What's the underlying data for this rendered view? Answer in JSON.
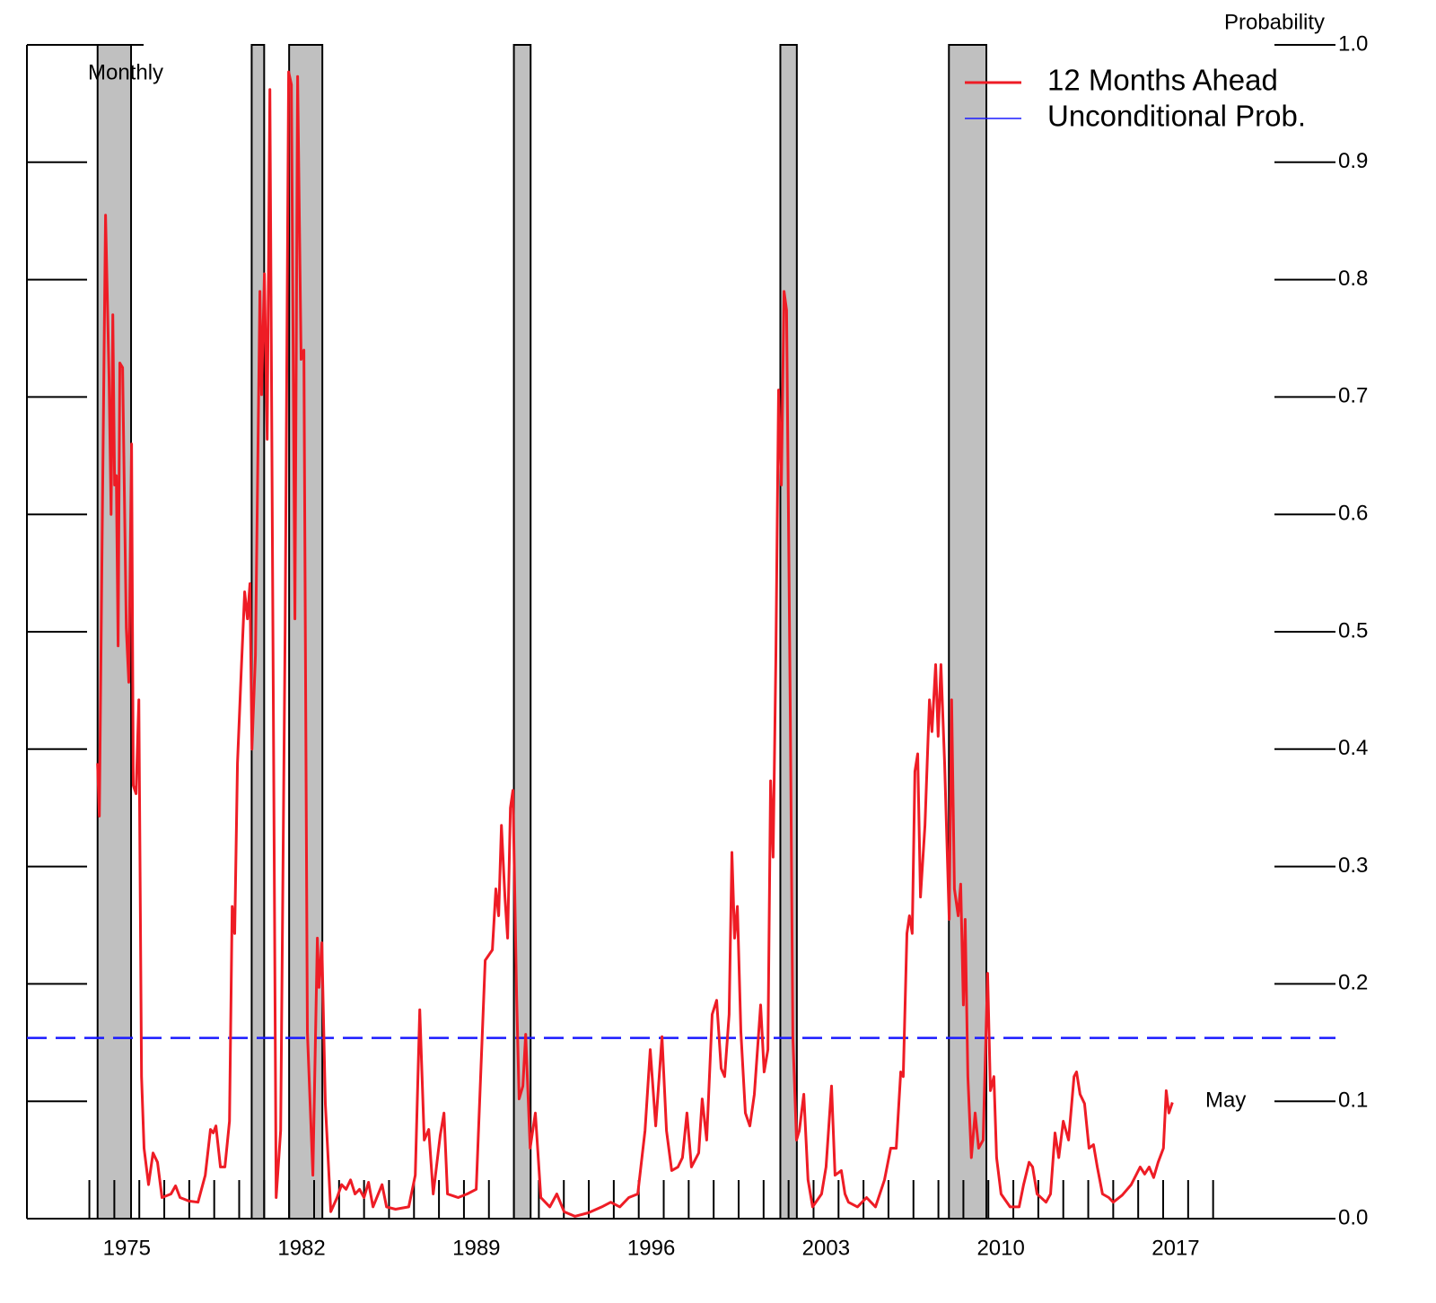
{
  "chart_data": {
    "type": "line",
    "y_axis_label": "Probability",
    "annotations": [
      "Monthly",
      "May"
    ],
    "legend": "top-right",
    "xlim": [
      1971,
      2023.4
    ],
    "ylim": [
      0,
      1
    ],
    "xticks": [
      1975,
      1982,
      1989,
      1996,
      2003,
      2010,
      2017
    ],
    "minor_xticks": [
      1973.5,
      1974.5,
      1975.5,
      1976.5,
      1977.5,
      1978.5,
      1979.5,
      1980.5,
      1981.5,
      1982.5,
      1983.5,
      1984.5,
      1985.5,
      1986.5,
      1987.5,
      1988.5,
      1989.5,
      1990.5,
      1991.5,
      1992.5,
      1993.5,
      1994.5,
      1995.5,
      1996.5,
      1997.5,
      1998.5,
      1999.5,
      2000.5,
      2001.5,
      2002.5,
      2003.5,
      2004.5,
      2005.5,
      2006.5,
      2007.5,
      2008.5,
      2009.5,
      2010.5,
      2011.5,
      2012.5,
      2013.5,
      2014.5,
      2015.5,
      2016.5,
      2017.5,
      2018.5
    ],
    "yticks": [
      {
        "value": 0,
        "label": "0.0"
      },
      0.1,
      0.2,
      0.3,
      0.4,
      0.5,
      0.6,
      0.7,
      0.8,
      0.9,
      {
        "value": 1,
        "label": "1.0"
      }
    ],
    "shaded_ranges": [
      [
        1973.83,
        1975.17
      ],
      [
        1980.0,
        1980.5
      ],
      [
        1981.5,
        1982.83
      ],
      [
        1990.5,
        1991.17
      ],
      [
        2001.17,
        2001.83
      ],
      [
        2007.92,
        2009.42
      ]
    ],
    "shade_color": "#c0c0c0",
    "reference_line": {
      "name": "Unconditional Prob.",
      "color": "#1a1aff",
      "value": 0.154
    },
    "x": [
      1973.83,
      1973.9,
      1974.01,
      1974.15,
      1974.29,
      1974.37,
      1974.44,
      1974.51,
      1974.58,
      1974.65,
      1974.72,
      1974.83,
      1974.98,
      1975.08,
      1975.19,
      1975.26,
      1975.37,
      1975.48,
      1975.59,
      1975.69,
      1975.87,
      1976.05,
      1976.23,
      1976.41,
      1976.77,
      1976.95,
      1977.13,
      1977.49,
      1977.85,
      1978.14,
      1978.35,
      1978.46,
      1978.57,
      1978.75,
      1978.93,
      1979.11,
      1979.22,
      1979.32,
      1979.43,
      1979.58,
      1979.72,
      1979.83,
      1979.93,
      1980.01,
      1980.15,
      1980.33,
      1980.4,
      1980.51,
      1980.62,
      1980.73,
      1980.83,
      1980.98,
      1981.16,
      1981.34,
      1981.48,
      1981.59,
      1981.73,
      1981.84,
      1981.98,
      1982.09,
      1982.23,
      1982.45,
      1982.63,
      1982.7,
      1982.81,
      1982.95,
      1983.17,
      1983.42,
      1983.6,
      1983.78,
      1983.96,
      1984.14,
      1984.32,
      1984.5,
      1984.68,
      1984.86,
      1985.22,
      1985.4,
      1985.76,
      1986.29,
      1986.55,
      1986.73,
      1986.91,
      1987.09,
      1987.27,
      1987.55,
      1987.7,
      1987.84,
      1988.27,
      1988.63,
      1988.99,
      1989.35,
      1989.64,
      1989.78,
      1989.89,
      1990.0,
      1990.14,
      1990.25,
      1990.36,
      1990.46,
      1990.61,
      1990.71,
      1990.86,
      1990.97,
      1991.15,
      1991.36,
      1991.58,
      1991.94,
      1992.22,
      1992.51,
      1992.94,
      1993.48,
      1994.02,
      1994.38,
      1994.74,
      1995.1,
      1995.46,
      1995.75,
      1995.96,
      1996.18,
      1996.43,
      1996.61,
      1996.82,
      1997.07,
      1997.25,
      1997.43,
      1997.61,
      1997.9,
      1998.04,
      1998.22,
      1998.44,
      1998.62,
      1998.8,
      1998.94,
      1999.12,
      1999.23,
      1999.34,
      1999.45,
      1999.59,
      1999.77,
      1999.95,
      2000.13,
      2000.38,
      2000.52,
      2000.67,
      2000.78,
      2000.88,
      2000.99,
      2001.1,
      2001.21,
      2001.32,
      2001.42,
      2001.57,
      2001.67,
      2001.82,
      2001.93,
      2002.11,
      2002.28,
      2002.46,
      2002.82,
      2003.0,
      2003.22,
      2003.36,
      2003.61,
      2003.76,
      2003.9,
      2004.26,
      2004.62,
      2004.98,
      2005.34,
      2005.59,
      2005.81,
      2005.99,
      2006.09,
      2006.24,
      2006.34,
      2006.45,
      2006.56,
      2006.67,
      2006.78,
      2006.96,
      2007.14,
      2007.24,
      2007.39,
      2007.49,
      2007.6,
      2007.75,
      2007.93,
      2008.03,
      2008.14,
      2008.29,
      2008.39,
      2008.5,
      2008.57,
      2008.68,
      2008.82,
      2008.97,
      2009.11,
      2009.29,
      2009.47,
      2009.58,
      2009.72,
      2009.83,
      2010.01,
      2010.37,
      2010.73,
      2010.91,
      2011.13,
      2011.27,
      2011.45,
      2011.81,
      2011.99,
      2012.17,
      2012.32,
      2012.5,
      2012.71,
      2012.93,
      2013.03,
      2013.17,
      2013.35,
      2013.53,
      2013.71,
      2013.86,
      2014.07,
      2014.32,
      2014.5,
      2014.86,
      2015.22,
      2015.58,
      2015.76,
      2015.94,
      2016.12,
      2016.3,
      2016.51,
      2016.62,
      2016.73,
      2016.87
    ],
    "series": [
      {
        "name": "12 Months Ahead",
        "color": "#ee1c25",
        "values": [
          0.388,
          0.343,
          0.58,
          0.855,
          0.717,
          0.6,
          0.77,
          0.625,
          0.633,
          0.488,
          0.729,
          0.725,
          0.503,
          0.457,
          0.66,
          0.369,
          0.362,
          0.442,
          0.121,
          0.06,
          0.029,
          0.056,
          0.048,
          0.018,
          0.021,
          0.028,
          0.018,
          0.015,
          0.014,
          0.037,
          0.076,
          0.073,
          0.079,
          0.044,
          0.044,
          0.083,
          0.266,
          0.243,
          0.388,
          0.465,
          0.534,
          0.511,
          0.541,
          0.4,
          0.48,
          0.79,
          0.702,
          0.805,
          0.664,
          0.962,
          0.58,
          0.018,
          0.075,
          0.503,
          0.977,
          0.966,
          0.511,
          0.973,
          0.732,
          0.74,
          0.159,
          0.037,
          0.239,
          0.197,
          0.235,
          0.098,
          0.006,
          0.018,
          0.029,
          0.025,
          0.033,
          0.021,
          0.025,
          0.018,
          0.031,
          0.01,
          0.029,
          0.01,
          0.008,
          0.01,
          0.037,
          0.178,
          0.067,
          0.076,
          0.021,
          0.071,
          0.09,
          0.021,
          0.018,
          0.021,
          0.025,
          0.22,
          0.229,
          0.281,
          0.258,
          0.335,
          0.274,
          0.239,
          0.35,
          0.365,
          0.19,
          0.102,
          0.113,
          0.157,
          0.06,
          0.09,
          0.018,
          0.01,
          0.021,
          0.006,
          0.002,
          0.005,
          0.01,
          0.014,
          0.01,
          0.018,
          0.021,
          0.075,
          0.144,
          0.079,
          0.155,
          0.075,
          0.041,
          0.044,
          0.052,
          0.09,
          0.044,
          0.056,
          0.102,
          0.067,
          0.174,
          0.186,
          0.128,
          0.121,
          0.174,
          0.312,
          0.239,
          0.266,
          0.159,
          0.09,
          0.079,
          0.106,
          0.182,
          0.125,
          0.144,
          0.373,
          0.308,
          0.48,
          0.706,
          0.625,
          0.79,
          0.774,
          0.427,
          0.155,
          0.067,
          0.075,
          0.106,
          0.033,
          0.01,
          0.021,
          0.044,
          0.113,
          0.037,
          0.041,
          0.021,
          0.014,
          0.01,
          0.018,
          0.01,
          0.033,
          0.06,
          0.06,
          0.125,
          0.121,
          0.243,
          0.258,
          0.243,
          0.381,
          0.396,
          0.274,
          0.335,
          0.442,
          0.415,
          0.472,
          0.411,
          0.472,
          0.388,
          0.255,
          0.442,
          0.281,
          0.258,
          0.285,
          0.182,
          0.255,
          0.121,
          0.052,
          0.09,
          0.06,
          0.067,
          0.209,
          0.109,
          0.121,
          0.052,
          0.021,
          0.01,
          0.01,
          0.029,
          0.048,
          0.044,
          0.021,
          0.014,
          0.021,
          0.073,
          0.052,
          0.083,
          0.067,
          0.121,
          0.125,
          0.106,
          0.098,
          0.06,
          0.063,
          0.044,
          0.021,
          0.018,
          0.014,
          0.02,
          0.029,
          0.044,
          0.038,
          0.044,
          0.035,
          0.048,
          0.06,
          0.109,
          0.09,
          0.099
        ]
      }
    ]
  }
}
